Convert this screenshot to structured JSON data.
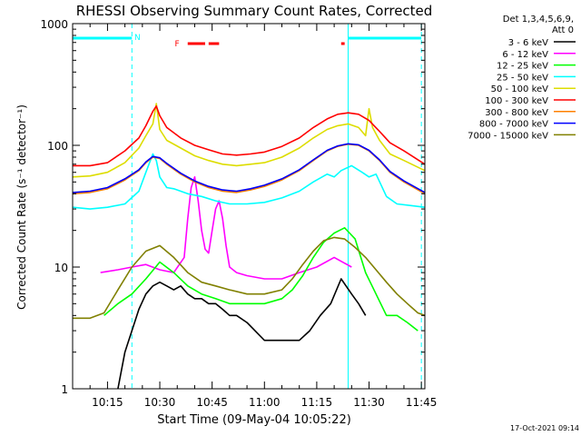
{
  "chart_data": {
    "type": "line",
    "title": "RHESSI Observing Summary Count Rates, Corrected",
    "xlabel": "Start Time (09-May-04 10:05:22)",
    "ylabel": "Corrected Count Rate (s⁻¹ detector⁻¹)",
    "y_scale": "log",
    "ylim": [
      1,
      1000
    ],
    "y_ticks": [
      1,
      10,
      100,
      1000
    ],
    "x_range_minutes": [
      "10:05",
      "11:46"
    ],
    "x_ticks": [
      "10:15",
      "10:30",
      "10:45",
      "11:00",
      "11:15",
      "11:30",
      "11:45"
    ],
    "legend_header": [
      "Det 1,3,4,5,6,9,",
      "Att 0"
    ],
    "legend_position": "right",
    "footer_date": "17-Oct-2021 09:14",
    "series": [
      {
        "name": "3 - 6 keV",
        "color": "#000000",
        "x": [
          "10:10",
          "10:18",
          "10:20",
          "10:22",
          "10:24",
          "10:26",
          "10:28",
          "10:30",
          "10:32",
          "10:34",
          "10:36",
          "10:38",
          "10:40",
          "10:42",
          "10:44",
          "10:46",
          "10:48",
          "10:50",
          "10:52",
          "10:55",
          "11:00",
          "11:05",
          "11:10",
          "11:13",
          "11:16",
          "11:19",
          "11:22",
          "11:25",
          "11:27",
          "11:29"
        ],
        "y": [
          null,
          1.0,
          2.0,
          3.0,
          4.5,
          6.0,
          7.0,
          7.5,
          7.0,
          6.5,
          7.0,
          6.0,
          5.5,
          5.5,
          5.0,
          5.0,
          4.5,
          4.0,
          4.0,
          3.5,
          2.5,
          2.5,
          2.5,
          3.0,
          4.0,
          5.0,
          8.0,
          6.0,
          5.0,
          4.0
        ]
      },
      {
        "name": "6 - 12 keV",
        "color": "#ff00ff",
        "x": [
          "10:05",
          "10:13",
          "10:18",
          "10:22",
          "10:26",
          "10:30",
          "10:34",
          "10:37",
          "10:38",
          "10:39",
          "10:40",
          "10:41",
          "10:42",
          "10:43",
          "10:44",
          "10:45",
          "10:46",
          "10:47",
          "10:48",
          "10:49",
          "10:50",
          "10:52",
          "10:55",
          "11:00",
          "11:05",
          "11:10",
          "11:15",
          "11:20",
          "11:25",
          "11:30"
        ],
        "y": [
          null,
          9.0,
          9.5,
          10.0,
          10.5,
          9.5,
          9.0,
          12.0,
          25.0,
          45.0,
          55.0,
          35.0,
          20.0,
          14.0,
          13.0,
          20.0,
          30.0,
          35.0,
          25.0,
          15.0,
          10.0,
          9.0,
          8.5,
          8.0,
          8.0,
          9.0,
          10.0,
          12.0,
          10.0,
          null
        ]
      },
      {
        "name": "12 - 25 keV",
        "color": "#00ff00",
        "x": [
          "10:05",
          "10:10",
          "10:14",
          "10:18",
          "10:22",
          "10:26",
          "10:30",
          "10:34",
          "10:38",
          "10:42",
          "10:46",
          "10:50",
          "10:55",
          "11:00",
          "11:05",
          "11:08",
          "11:11",
          "11:14",
          "11:17",
          "11:20",
          "11:23",
          "11:26",
          "11:29",
          "11:32",
          "11:35",
          "11:38",
          "11:41",
          "11:44"
        ],
        "y": [
          null,
          null,
          4.0,
          5.0,
          6.0,
          8.0,
          11.0,
          9.0,
          7.0,
          6.0,
          5.5,
          5.0,
          5.0,
          5.0,
          5.5,
          6.5,
          8.5,
          12.0,
          16.0,
          19.0,
          21.0,
          17.0,
          9.0,
          6.0,
          4.0,
          4.0,
          3.5,
          3.0
        ]
      },
      {
        "name": "25 - 50 keV",
        "color": "#00ffff",
        "x": [
          "10:05",
          "10:10",
          "10:15",
          "10:20",
          "10:24",
          "10:26",
          "10:28",
          "10:29",
          "10:30",
          "10:32",
          "10:34",
          "10:38",
          "10:42",
          "10:46",
          "10:50",
          "10:55",
          "11:00",
          "11:05",
          "11:10",
          "11:14",
          "11:18",
          "11:20",
          "11:22",
          "11:25",
          "11:28",
          "11:30",
          "11:32",
          "11:35",
          "11:38",
          "11:42",
          "11:46"
        ],
        "y": [
          31.0,
          30.0,
          31.0,
          33.0,
          42.0,
          60.0,
          85.0,
          75.0,
          55.0,
          45.0,
          44.0,
          40.0,
          38.0,
          35.0,
          33.0,
          33.0,
          34.0,
          37.0,
          42.0,
          50.0,
          58.0,
          55.0,
          62.0,
          68.0,
          60.0,
          55.0,
          58.0,
          38.0,
          33.0,
          32.0,
          31.0
        ]
      },
      {
        "name": "50 - 100 keV",
        "color": "#dddd00",
        "x": [
          "10:05",
          "10:10",
          "10:15",
          "10:20",
          "10:24",
          "10:26",
          "10:28",
          "10:29",
          "10:30",
          "10:32",
          "10:36",
          "10:40",
          "10:44",
          "10:48",
          "10:52",
          "10:56",
          "11:00",
          "11:05",
          "11:10",
          "11:14",
          "11:18",
          "11:21",
          "11:24",
          "11:27",
          "11:29",
          "11:30",
          "11:31",
          "11:33",
          "11:36",
          "11:40",
          "11:46"
        ],
        "y": [
          55.0,
          56.0,
          60.0,
          72.0,
          95.0,
          120.0,
          150.0,
          220.0,
          135.0,
          110.0,
          95.0,
          82.0,
          75.0,
          70.0,
          68.0,
          70.0,
          72.0,
          80.0,
          95.0,
          115.0,
          135.0,
          145.0,
          150.0,
          140.0,
          120.0,
          200.0,
          140.0,
          110.0,
          85.0,
          75.0,
          62.0
        ]
      },
      {
        "name": "100 - 300 keV",
        "color": "#ff0000",
        "x": [
          "10:05",
          "10:10",
          "10:15",
          "10:20",
          "10:24",
          "10:26",
          "10:28",
          "10:29",
          "10:30",
          "10:32",
          "10:36",
          "10:40",
          "10:44",
          "10:48",
          "10:52",
          "10:56",
          "11:00",
          "11:05",
          "11:10",
          "11:14",
          "11:18",
          "11:21",
          "11:24",
          "11:27",
          "11:30",
          "11:33",
          "11:36",
          "11:40",
          "11:46"
        ],
        "y": [
          68.0,
          68.0,
          72.0,
          90.0,
          115.0,
          145.0,
          190.0,
          210.0,
          175.0,
          140.0,
          115.0,
          100.0,
          92.0,
          85.0,
          83.0,
          85.0,
          88.0,
          98.0,
          115.0,
          140.0,
          165.0,
          180.0,
          185.0,
          180.0,
          160.0,
          130.0,
          105.0,
          90.0,
          70.0
        ]
      },
      {
        "name": "300 - 800 keV",
        "color": "#ff8000",
        "x": [
          "10:05",
          "10:10",
          "10:15",
          "10:20",
          "10:24",
          "10:26",
          "10:28",
          "10:30",
          "10:32",
          "10:36",
          "10:40",
          "10:44",
          "10:48",
          "10:52",
          "10:56",
          "11:00",
          "11:05",
          "11:10",
          "11:14",
          "11:18",
          "11:21",
          "11:24",
          "11:27",
          "11:30",
          "11:33",
          "11:36",
          "11:40",
          "11:46"
        ],
        "y": [
          40.0,
          41.0,
          44.0,
          52.0,
          62.0,
          72.0,
          80.0,
          78.0,
          70.0,
          58.0,
          50.0,
          45.0,
          42.0,
          41.0,
          43.0,
          46.0,
          52.0,
          62.0,
          75.0,
          90.0,
          98.0,
          102.0,
          100.0,
          90.0,
          75.0,
          60.0,
          50.0,
          40.0
        ]
      },
      {
        "name": "800 - 7000 keV",
        "color": "#0000ff",
        "x": [
          "10:05",
          "10:10",
          "10:15",
          "10:20",
          "10:24",
          "10:26",
          "10:28",
          "10:30",
          "10:32",
          "10:36",
          "10:40",
          "10:44",
          "10:48",
          "10:52",
          "10:56",
          "11:00",
          "11:05",
          "11:10",
          "11:14",
          "11:18",
          "11:21",
          "11:24",
          "11:27",
          "11:30",
          "11:33",
          "11:36",
          "11:40",
          "11:46"
        ],
        "y": [
          41.0,
          42.0,
          45.0,
          53.0,
          63.0,
          73.0,
          81.0,
          79.0,
          71.0,
          59.0,
          51.0,
          46.0,
          43.0,
          42.0,
          44.0,
          47.0,
          53.0,
          63.0,
          76.0,
          91.0,
          99.0,
          103.0,
          101.0,
          91.0,
          76.0,
          61.0,
          51.0,
          41.0
        ]
      },
      {
        "name": "7000 - 15000 keV",
        "color": "#808000",
        "x": [
          "10:05",
          "10:10",
          "10:14",
          "10:18",
          "10:22",
          "10:26",
          "10:30",
          "10:34",
          "10:38",
          "10:42",
          "10:46",
          "10:50",
          "10:55",
          "11:00",
          "11:05",
          "11:08",
          "11:11",
          "11:14",
          "11:17",
          "11:20",
          "11:23",
          "11:26",
          "11:29",
          "11:32",
          "11:35",
          "11:38",
          "11:41",
          "11:44",
          "11:46"
        ],
        "y": [
          3.8,
          3.8,
          4.2,
          6.5,
          10.0,
          13.5,
          15.0,
          12.0,
          9.0,
          7.5,
          7.0,
          6.5,
          6.0,
          6.0,
          6.5,
          8.0,
          10.5,
          13.5,
          16.5,
          17.5,
          17.0,
          14.5,
          12.0,
          9.5,
          7.5,
          6.0,
          5.0,
          4.2,
          4.0
        ]
      }
    ],
    "annotations": [
      {
        "text": "N",
        "color": "#00ffff",
        "x": "10:22"
      },
      {
        "text": "F",
        "color": "#ff0000",
        "x": "10:36"
      }
    ],
    "time_bands": [
      {
        "label": "N",
        "color": "#00ffff",
        "segments": [
          [
            "10:05",
            "10:22"
          ],
          [
            "11:24",
            "11:45"
          ]
        ]
      },
      {
        "label": "F",
        "color": "#ff0000",
        "segments": [
          [
            "10:38",
            "10:43"
          ],
          [
            "10:44",
            "10:47"
          ],
          [
            "11:22",
            "11:23"
          ]
        ]
      }
    ],
    "vertical_markers": [
      {
        "x": "10:05",
        "color": "#00ffff",
        "style": "solid"
      },
      {
        "x": "10:22",
        "color": "#00ffff",
        "style": "dashed"
      },
      {
        "x": "11:24",
        "color": "#00ffff",
        "style": "solid"
      },
      {
        "x": "11:45",
        "color": "#00ffff",
        "style": "dashed"
      }
    ]
  }
}
